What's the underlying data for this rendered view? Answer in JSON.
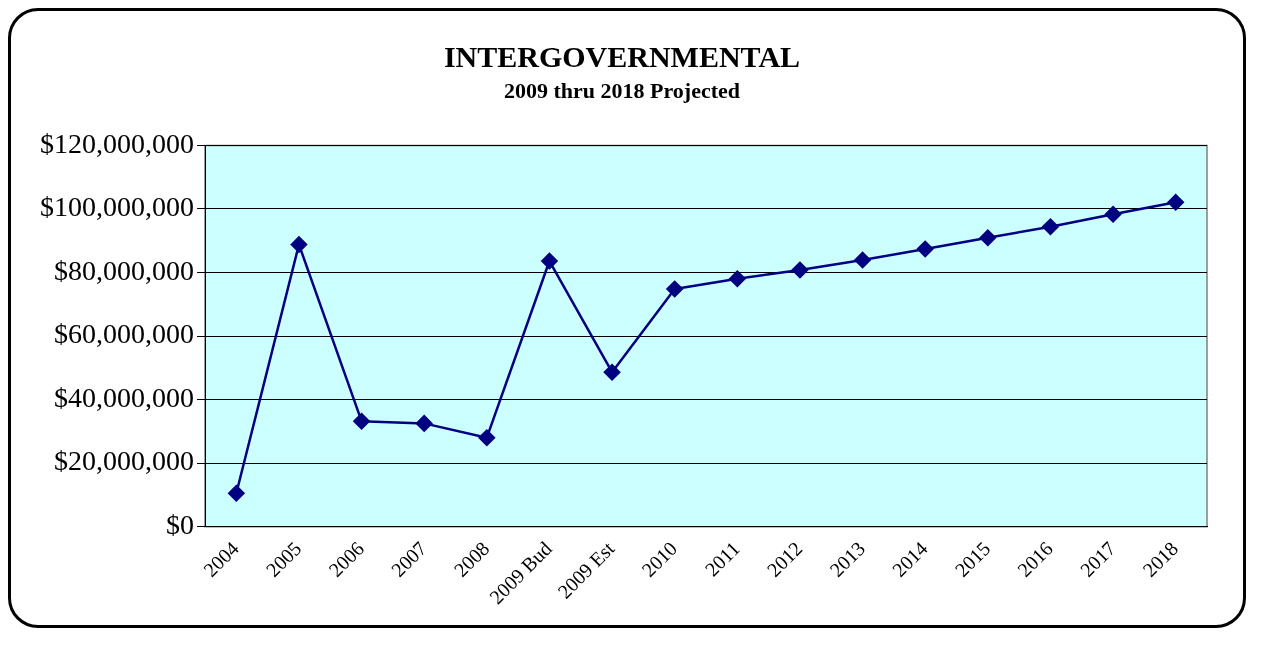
{
  "chart_data": {
    "type": "line",
    "title": "INTERGOVERNMENTAL",
    "subtitle": "2009 thru 2018 Projected",
    "categories": [
      "2004",
      "2005",
      "2006",
      "2007",
      "2008",
      "2009 Bud",
      "2009 Est",
      "2010",
      "2011",
      "2012",
      "2013",
      "2014",
      "2015",
      "2016",
      "2017",
      "2018"
    ],
    "series": [
      {
        "color": "#000080",
        "values": [
          10500000,
          88800000,
          33200000,
          32500000,
          28000000,
          83600000,
          48600000,
          74800000,
          78000000,
          80800000,
          83900000,
          87400000,
          90900000,
          94400000,
          98300000,
          102100000
        ]
      }
    ],
    "ylim": [
      0,
      120000000
    ],
    "yticks": [
      {
        "value": 0,
        "label": "$0"
      },
      {
        "value": 20000000,
        "label": "$20,000,000"
      },
      {
        "value": 40000000,
        "label": "$40,000,000"
      },
      {
        "value": 60000000,
        "label": "$60,000,000"
      },
      {
        "value": 80000000,
        "label": "$80,000,000"
      },
      {
        "value": 100000000,
        "label": "$100,000,000"
      },
      {
        "value": 120000000,
        "label": "$120,000,000"
      }
    ],
    "grid": "y",
    "legend": false,
    "marker": "diamond",
    "line_style": "solid"
  }
}
